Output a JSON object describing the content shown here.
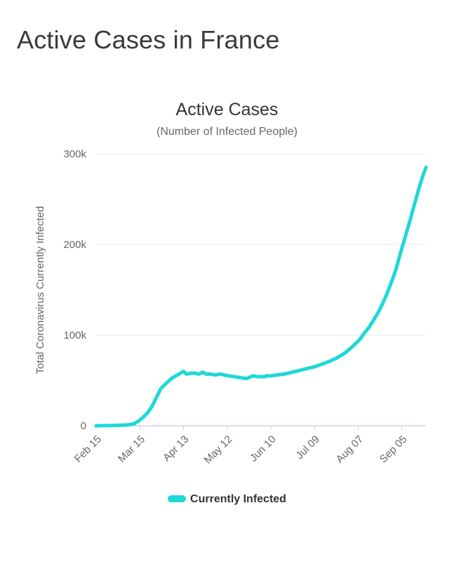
{
  "page": {
    "title": "Active Cases in France"
  },
  "colors": {
    "series": "#1fd8d8",
    "grid": "#e3e7ef",
    "axis": "#c8d4e8",
    "text": "#666666"
  },
  "chart_data": {
    "type": "line",
    "title": "Active Cases",
    "subtitle": "(Number of Infected People)",
    "xlabel": "",
    "ylabel": "Total Coronavirus Currently Infected",
    "ylim": [
      0,
      300000
    ],
    "y_ticks": [
      0,
      100000,
      200000,
      300000
    ],
    "y_tick_labels": [
      "0",
      "100k",
      "200k",
      "300k"
    ],
    "x_tick_labels": [
      "Feb 15",
      "Mar 15",
      "Apr 13",
      "May 12",
      "Jun 10",
      "Jul 09",
      "Aug 07",
      "Sep 05"
    ],
    "x_tick_days": [
      0,
      29,
      58,
      87,
      116,
      145,
      174,
      203
    ],
    "x_range_days": [
      0,
      219
    ],
    "legend": "bottom",
    "grid": true,
    "series": [
      {
        "name": "Currently Infected",
        "days": [
          0,
          10,
          20,
          25,
          28,
          31,
          34,
          37,
          40,
          43,
          46,
          48,
          50,
          53,
          56,
          58,
          60,
          63,
          66,
          68,
          71,
          73,
          76,
          79,
          82,
          85,
          88,
          92,
          96,
          100,
          104,
          108,
          112,
          113,
          116,
          120,
          125,
          130,
          135,
          140,
          145,
          150,
          155,
          160,
          165,
          170,
          175,
          178,
          181,
          184,
          187,
          190,
          193,
          196,
          199,
          202,
          205,
          208,
          211,
          214,
          217,
          219
        ],
        "values": [
          0,
          200,
          800,
          2000,
          5000,
          9000,
          14000,
          21000,
          31000,
          41000,
          46000,
          49000,
          52000,
          55000,
          58000,
          60000,
          57000,
          58000,
          58000,
          57000,
          59000,
          57000,
          57000,
          56000,
          57000,
          56000,
          55000,
          54000,
          53000,
          52000,
          55000,
          54000,
          54000,
          55000,
          55000,
          56000,
          57000,
          59000,
          61000,
          63000,
          65000,
          68000,
          71000,
          75000,
          80000,
          87000,
          95000,
          102000,
          108000,
          116000,
          124000,
          134000,
          145000,
          158000,
          172000,
          190000,
          207000,
          224000,
          242000,
          260000,
          276000,
          285000
        ]
      }
    ]
  }
}
